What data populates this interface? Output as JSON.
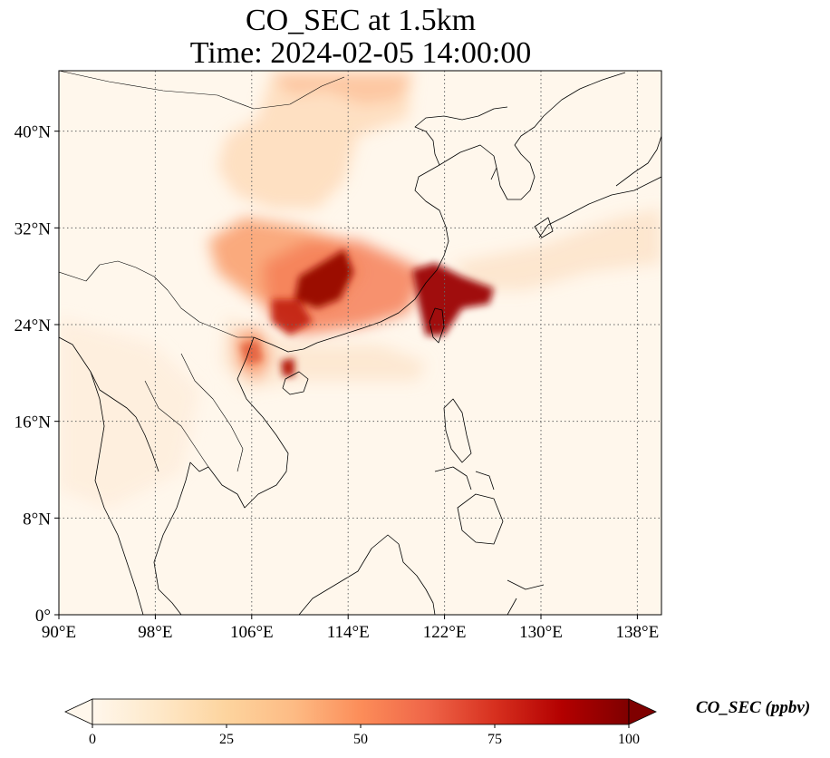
{
  "title": {
    "line1": "CO_SEC at 1.5km",
    "line2": "Time: 2024-02-05 14:00:00"
  },
  "map": {
    "extent": {
      "lon": [
        90,
        140
      ],
      "lat": [
        0,
        45
      ]
    },
    "lon_ticks": [
      {
        "value": 90,
        "label": "90°E"
      },
      {
        "value": 98,
        "label": "98°E"
      },
      {
        "value": 106,
        "label": "106°E"
      },
      {
        "value": 114,
        "label": "114°E"
      },
      {
        "value": 122,
        "label": "122°E"
      },
      {
        "value": 130,
        "label": "130°E"
      },
      {
        "value": 138,
        "label": "138°E"
      }
    ],
    "lat_ticks": [
      {
        "value": 0,
        "label": "0°"
      },
      {
        "value": 8,
        "label": "8°N"
      },
      {
        "value": 16,
        "label": "16°N"
      },
      {
        "value": 24,
        "label": "24°N"
      },
      {
        "value": 32,
        "label": "32°N"
      },
      {
        "value": 40,
        "label": "40°N"
      }
    ],
    "gridlines": true
  },
  "colorbar": {
    "label": "CO_SEC (ppbv)",
    "colormap": [
      "#fff7ec",
      "#fee8c8",
      "#fdd49e",
      "#fdbb84",
      "#fc8d59",
      "#ef6548",
      "#d7301f",
      "#b30000",
      "#7f0000"
    ],
    "range": [
      0,
      100
    ],
    "extend": "both",
    "ticks": [
      {
        "value": 0,
        "label": "0"
      },
      {
        "value": 25,
        "label": "25"
      },
      {
        "value": 50,
        "label": "50"
      },
      {
        "value": 75,
        "label": "75"
      },
      {
        "value": 100,
        "label": "100"
      }
    ]
  }
}
